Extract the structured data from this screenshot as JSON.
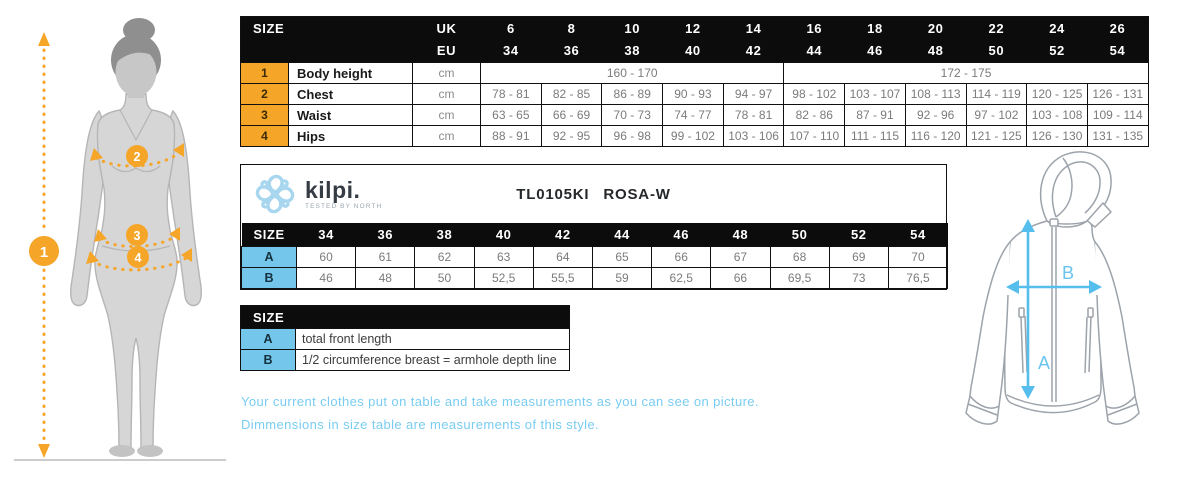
{
  "colors": {
    "accent_orange": "#f5a528",
    "accent_blue_cell": "#74c7ea",
    "arrow_blue": "#56beec",
    "note_blue": "#79ccf2",
    "logo_blue": "#a7d6ee",
    "header_black": "#0c0c0c"
  },
  "measure_table": {
    "size_label": "SIZE",
    "uk_label": "UK",
    "eu_label": "EU",
    "uk_sizes": [
      "6",
      "8",
      "10",
      "12",
      "14",
      "16",
      "18",
      "20",
      "22",
      "24",
      "26"
    ],
    "eu_sizes": [
      "34",
      "36",
      "38",
      "40",
      "42",
      "44",
      "46",
      "48",
      "50",
      "52",
      "54"
    ],
    "rows": [
      {
        "num": "1",
        "label": "Body height",
        "unit": "cm",
        "cells": [
          {
            "t": "160 - 170",
            "span": 5
          },
          {
            "t": "172 - 175",
            "span": 6
          }
        ]
      },
      {
        "num": "2",
        "label": "Chest",
        "unit": "cm",
        "cells": [
          {
            "t": "78 - 81"
          },
          {
            "t": "82 - 85"
          },
          {
            "t": "86 - 89"
          },
          {
            "t": "90 - 93"
          },
          {
            "t": "94 - 97"
          },
          {
            "t": "98 - 102"
          },
          {
            "t": "103 - 107"
          },
          {
            "t": "108 - 113"
          },
          {
            "t": "114 - 119"
          },
          {
            "t": "120 - 125"
          },
          {
            "t": "126 - 131"
          }
        ]
      },
      {
        "num": "3",
        "label": "Waist",
        "unit": "cm",
        "cells": [
          {
            "t": "63 - 65"
          },
          {
            "t": "66 - 69"
          },
          {
            "t": "70 - 73"
          },
          {
            "t": "74 - 77"
          },
          {
            "t": "78 - 81"
          },
          {
            "t": "82 - 86"
          },
          {
            "t": "87 - 91"
          },
          {
            "t": "92 - 96"
          },
          {
            "t": "97 - 102"
          },
          {
            "t": "103 - 108"
          },
          {
            "t": "109 - 114"
          }
        ]
      },
      {
        "num": "4",
        "label": "Hips",
        "unit": "cm",
        "cells": [
          {
            "t": "88 - 91"
          },
          {
            "t": "92 - 95"
          },
          {
            "t": "96 - 98"
          },
          {
            "t": "99 - 102"
          },
          {
            "t": "103 - 106"
          },
          {
            "t": "107 - 110"
          },
          {
            "t": "111 - 115"
          },
          {
            "t": "116 - 120"
          },
          {
            "t": "121 - 125"
          },
          {
            "t": "126 - 130"
          },
          {
            "t": "131 - 135"
          }
        ]
      }
    ]
  },
  "brand": {
    "name": "kilpi.",
    "tagline": "TESTED BY NORTH"
  },
  "product": {
    "code": "TL0105KI",
    "name": "ROSA-W"
  },
  "product_table": {
    "size_label": "SIZE",
    "sizes": [
      "34",
      "36",
      "38",
      "40",
      "42",
      "44",
      "46",
      "48",
      "50",
      "52",
      "54"
    ],
    "rows": [
      {
        "key": "A",
        "values": [
          "60",
          "61",
          "62",
          "63",
          "64",
          "65",
          "66",
          "67",
          "68",
          "69",
          "70"
        ]
      },
      {
        "key": "B",
        "values": [
          "46",
          "48",
          "50",
          "52,5",
          "55,5",
          "59",
          "62,5",
          "66",
          "69,5",
          "73",
          "76,5"
        ]
      }
    ]
  },
  "legend": {
    "size_label": "SIZE",
    "rows": [
      {
        "key": "A",
        "desc": "total front length"
      },
      {
        "key": "B",
        "desc": "1/2 circumference breast = armhole depth line"
      }
    ]
  },
  "notes": {
    "line1": "Your current clothes put on table and take measurements as you can see on picture.",
    "line2": "Dimmensions in size table are measurements of this style."
  },
  "figure": {
    "markers": [
      "1",
      "2",
      "3",
      "4"
    ]
  },
  "jacket": {
    "label_a": "A",
    "label_b": "B"
  }
}
